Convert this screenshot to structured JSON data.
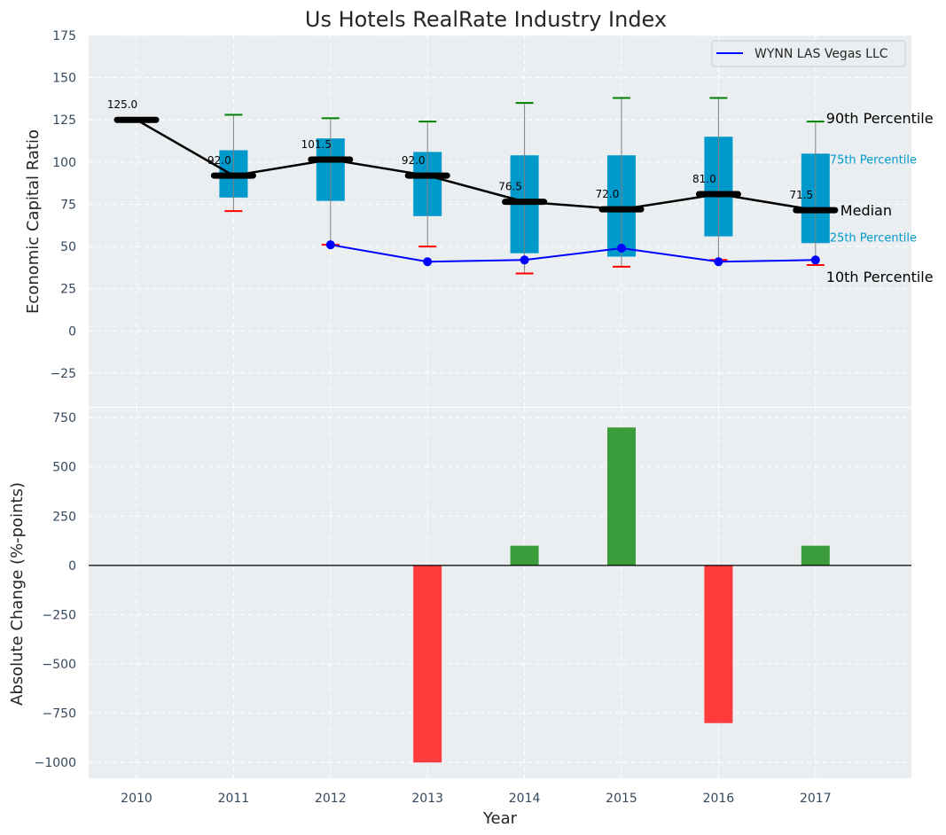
{
  "chart_data": [
    {
      "type": "box",
      "title": "Us Hotels RealRate Industry Index",
      "ylabel": "Economic Capital Ratio",
      "ylim": [
        -45,
        175
      ],
      "yticks": [
        175,
        150,
        125,
        100,
        75,
        50,
        25,
        0,
        -25
      ],
      "ytick_labels": [
        "175",
        "150",
        "125",
        "100",
        "75",
        "50",
        "25",
        "0",
        "−25"
      ],
      "years": [
        "2010",
        "2011",
        "2012",
        "2013",
        "2014",
        "2015",
        "2016",
        "2017"
      ],
      "boxes": [
        {
          "year": "2010",
          "p10": null,
          "p25": null,
          "median": 125.0,
          "p75": null,
          "p90": null
        },
        {
          "year": "2011",
          "p10": 71,
          "p25": 79,
          "median": 92.0,
          "p75": 107,
          "p90": 128
        },
        {
          "year": "2012",
          "p10": 51,
          "p25": 77,
          "median": 101.5,
          "p75": 114,
          "p90": 126
        },
        {
          "year": "2013",
          "p10": 50,
          "p25": 68,
          "median": 92.0,
          "p75": 106,
          "p90": 124
        },
        {
          "year": "2014",
          "p10": 34,
          "p25": 46,
          "median": 76.5,
          "p75": 104,
          "p90": 135
        },
        {
          "year": "2015",
          "p10": 38,
          "p25": 44,
          "median": 72.0,
          "p75": 104,
          "p90": 138
        },
        {
          "year": "2016",
          "p10": 42,
          "p25": 56,
          "median": 81.0,
          "p75": 115,
          "p90": 138
        },
        {
          "year": "2017",
          "p10": 39,
          "p25": 52,
          "median": 71.5,
          "p75": 105,
          "p90": 124
        }
      ],
      "median_labels": [
        "125.0",
        "92.0",
        "101.5",
        "92.0",
        "76.5",
        "72.0",
        "81.0",
        "71.5"
      ],
      "company_series": {
        "name": "WYNN LAS Vegas LLC",
        "color": "#0000ff",
        "points": [
          {
            "year": "2012",
            "value": 51
          },
          {
            "year": "2013",
            "value": 41
          },
          {
            "year": "2014",
            "value": 42
          },
          {
            "year": "2015",
            "value": 49
          },
          {
            "year": "2016",
            "value": 41
          },
          {
            "year": "2017",
            "value": 42
          }
        ]
      },
      "legend": {
        "label": "WYNN LAS Vegas LLC",
        "position": "top-right"
      },
      "annotations": {
        "p90": "90th Percentile",
        "p75": "75th Percentile",
        "median": "Median",
        "p25": "25th Percentile",
        "p10": "10th Percentile"
      },
      "colors": {
        "box": "#0099cc",
        "median": "#000000",
        "p90_cap": "#008000",
        "p10_cap": "#ff0000",
        "whisker": "#808080",
        "background": "#eaeef0"
      }
    },
    {
      "type": "bar",
      "xlabel": "Year",
      "ylabel": "Absolute Change (%-points)",
      "ylim": [
        -1080,
        800
      ],
      "yticks": [
        750,
        500,
        250,
        0,
        -250,
        -500,
        -750,
        -1000
      ],
      "ytick_labels": [
        "750",
        "500",
        "250",
        "0",
        "−250",
        "−500",
        "−750",
        "−1000"
      ],
      "categories": [
        "2010",
        "2011",
        "2012",
        "2013",
        "2014",
        "2015",
        "2016",
        "2017"
      ],
      "values": [
        0,
        0,
        0,
        -1000,
        100,
        700,
        -800,
        100
      ],
      "colors": {
        "positive": "#3a9c3a",
        "negative": "#ff3b3b",
        "zero_line": "#000000"
      }
    }
  ]
}
